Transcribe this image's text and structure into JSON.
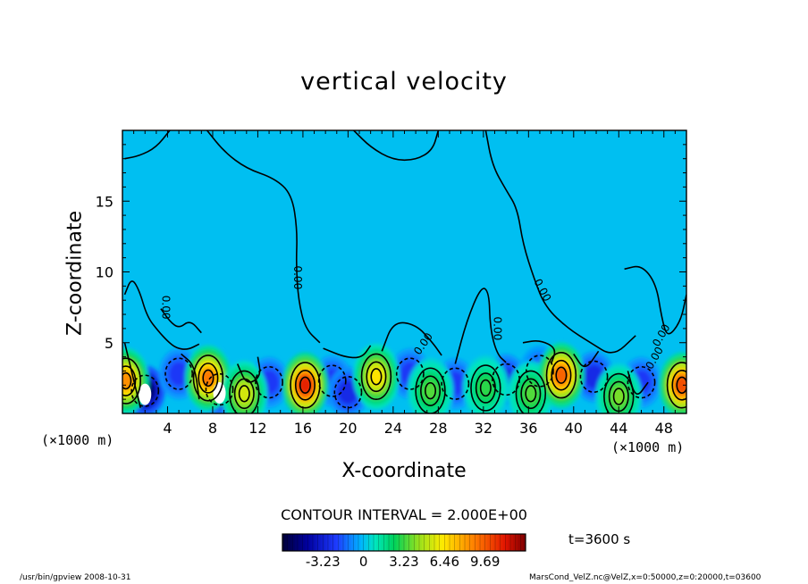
{
  "chart_data": {
    "type": "heatmap",
    "title": "vertical velocity",
    "xlabel": "X-coordinate",
    "ylabel": "Z-coordinate",
    "x_unit": "(×1000 m)",
    "xlim": [
      0,
      50
    ],
    "ylim": [
      0,
      20
    ],
    "x_ticks": [
      4,
      8,
      12,
      16,
      20,
      24,
      28,
      32,
      36,
      40,
      44,
      48
    ],
    "y_ticks": [
      5,
      10,
      15
    ],
    "contour_interval": "CONTOUR INTERVAL = 2.000E+00",
    "contour_labels": [
      "0.00",
      "0.00",
      "0.00",
      "0.00",
      "0.00",
      "0.00",
      "0.00"
    ],
    "colorbar": {
      "ticks": [
        "-3.23",
        "0",
        "3.23",
        "6.46",
        "9.69"
      ],
      "tick_values": [
        -3.23,
        0,
        3.23,
        6.46,
        9.69
      ],
      "range": [
        -6.46,
        12.92
      ]
    },
    "time_label": "t=3600 s",
    "updrafts": [
      {
        "x": 0.3,
        "z": 2.3,
        "w": 8.5
      },
      {
        "x": 7.6,
        "z": 2.5,
        "w": 9.0
      },
      {
        "x": 10.8,
        "z": 1.4,
        "w": 5.5
      },
      {
        "x": 16.2,
        "z": 2.0,
        "w": 11.0
      },
      {
        "x": 22.5,
        "z": 2.6,
        "w": 6.5
      },
      {
        "x": 27.3,
        "z": 1.6,
        "w": 3.5
      },
      {
        "x": 32.2,
        "z": 1.8,
        "w": 3.0
      },
      {
        "x": 36.2,
        "z": 1.4,
        "w": 3.5
      },
      {
        "x": 38.9,
        "z": 2.7,
        "w": 9.5
      },
      {
        "x": 44.0,
        "z": 1.2,
        "w": 4.0
      },
      {
        "x": 49.6,
        "z": 2.0,
        "w": 10.0
      }
    ],
    "downdrafts": [
      {
        "x": 2.0,
        "z": 1.6,
        "w": -7.0
      },
      {
        "x": 5.0,
        "z": 2.8,
        "w": -3.0
      },
      {
        "x": 8.6,
        "z": 1.7,
        "w": -6.0
      },
      {
        "x": 13.0,
        "z": 2.2,
        "w": -3.0
      },
      {
        "x": 18.6,
        "z": 2.3,
        "w": -3.0
      },
      {
        "x": 20.0,
        "z": 1.5,
        "w": -3.5
      },
      {
        "x": 25.5,
        "z": 2.8,
        "w": -3.0
      },
      {
        "x": 29.5,
        "z": 2.1,
        "w": -3.0
      },
      {
        "x": 34.0,
        "z": 2.4,
        "w": -3.5
      },
      {
        "x": 37.0,
        "z": 3.0,
        "w": -2.5
      },
      {
        "x": 41.8,
        "z": 2.6,
        "w": -3.5
      },
      {
        "x": 46.0,
        "z": 2.2,
        "w": -3.0
      }
    ]
  },
  "footer": {
    "left": "/usr/bin/gpview   2008-10-31",
    "right": "MarsCond_VelZ.nc@VelZ,x=0:50000,z=0:20000,t=03600"
  }
}
